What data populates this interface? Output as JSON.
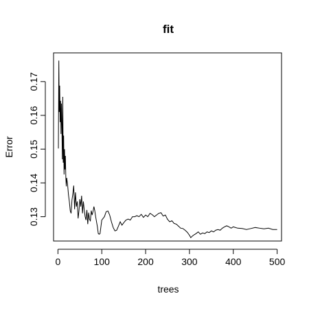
{
  "chart_data": {
    "type": "line",
    "title": "fit",
    "xlabel": "trees",
    "ylabel": "Error",
    "xlim": [
      -10,
      510
    ],
    "ylim": [
      0.1228,
      0.1785
    ],
    "xticks": [
      0,
      100,
      200,
      300,
      400,
      500
    ],
    "yticks": [
      0.13,
      0.14,
      0.15,
      0.16,
      0.17
    ],
    "xtick_labels": [
      "0",
      "100",
      "200",
      "300",
      "400",
      "500"
    ],
    "ytick_labels": [
      "0.13",
      "0.14",
      "0.15",
      "0.16",
      "0.17"
    ],
    "grid": false,
    "line_color": "#000000",
    "series": [
      {
        "x": [
          1,
          2,
          3,
          4,
          5,
          6,
          7,
          8,
          9,
          10,
          11,
          12,
          13,
          14,
          15,
          16,
          17,
          18,
          19,
          20,
          22,
          24,
          26,
          28,
          30,
          32,
          34,
          36,
          38,
          40,
          42,
          44,
          46,
          48,
          50,
          52,
          54,
          56,
          58,
          60,
          62,
          64,
          66,
          68,
          70,
          72,
          74,
          76,
          78,
          80,
          82,
          84,
          86,
          88,
          90,
          92,
          94,
          96,
          98,
          100,
          103,
          106,
          110,
          114,
          118,
          122,
          126,
          130,
          134,
          138,
          142,
          146,
          150,
          155,
          160,
          165,
          170,
          175,
          180,
          185,
          190,
          195,
          200,
          205,
          210,
          215,
          220,
          225,
          230,
          235,
          240,
          245,
          250,
          255,
          260,
          265,
          270,
          275,
          280,
          285,
          290,
          295,
          300,
          303,
          306,
          310,
          315,
          320,
          325,
          330,
          335,
          340,
          345,
          350,
          355,
          360,
          365,
          370,
          375,
          380,
          385,
          390,
          395,
          400,
          410,
          420,
          430,
          440,
          450,
          460,
          470,
          480,
          490,
          500
        ],
        "y": [
          0.1502,
          0.1762,
          0.161,
          0.1688,
          0.158,
          0.1643,
          0.1545,
          0.1635,
          0.1572,
          0.147,
          0.1655,
          0.146,
          0.154,
          0.1425,
          0.15,
          0.144,
          0.148,
          0.1415,
          0.139,
          0.1415,
          0.1395,
          0.1365,
          0.1345,
          0.1318,
          0.131,
          0.135,
          0.1368,
          0.1392,
          0.1322,
          0.1372,
          0.133,
          0.1345,
          0.1295,
          0.1318,
          0.1352,
          0.133,
          0.1362,
          0.131,
          0.1345,
          0.132,
          0.13,
          0.129,
          0.132,
          0.1278,
          0.1312,
          0.1292,
          0.1288,
          0.1318,
          0.1305,
          0.1315,
          0.133,
          0.1318,
          0.13,
          0.1285,
          0.127,
          0.125,
          0.1248,
          0.125,
          0.127,
          0.129,
          0.1295,
          0.13,
          0.1315,
          0.1317,
          0.1305,
          0.1285,
          0.1268,
          0.1258,
          0.126,
          0.1272,
          0.1285,
          0.1275,
          0.1282,
          0.129,
          0.1293,
          0.129,
          0.13,
          0.13,
          0.1303,
          0.13,
          0.1307,
          0.1298,
          0.1305,
          0.13,
          0.131,
          0.1306,
          0.13,
          0.1305,
          0.131,
          0.1312,
          0.1302,
          0.1305,
          0.1292,
          0.1285,
          0.1288,
          0.128,
          0.1278,
          0.1272,
          0.1266,
          0.1265,
          0.126,
          0.1254,
          0.1245,
          0.1238,
          0.1242,
          0.1246,
          0.125,
          0.1255,
          0.1248,
          0.1252,
          0.125,
          0.1255,
          0.1253,
          0.1258,
          0.1255,
          0.126,
          0.1262,
          0.126,
          0.1266,
          0.127,
          0.1273,
          0.127,
          0.1266,
          0.127,
          0.1266,
          0.1265,
          0.1262,
          0.1265,
          0.1268,
          0.1266,
          0.1264,
          0.1266,
          0.1262,
          0.1262
        ]
      }
    ]
  }
}
